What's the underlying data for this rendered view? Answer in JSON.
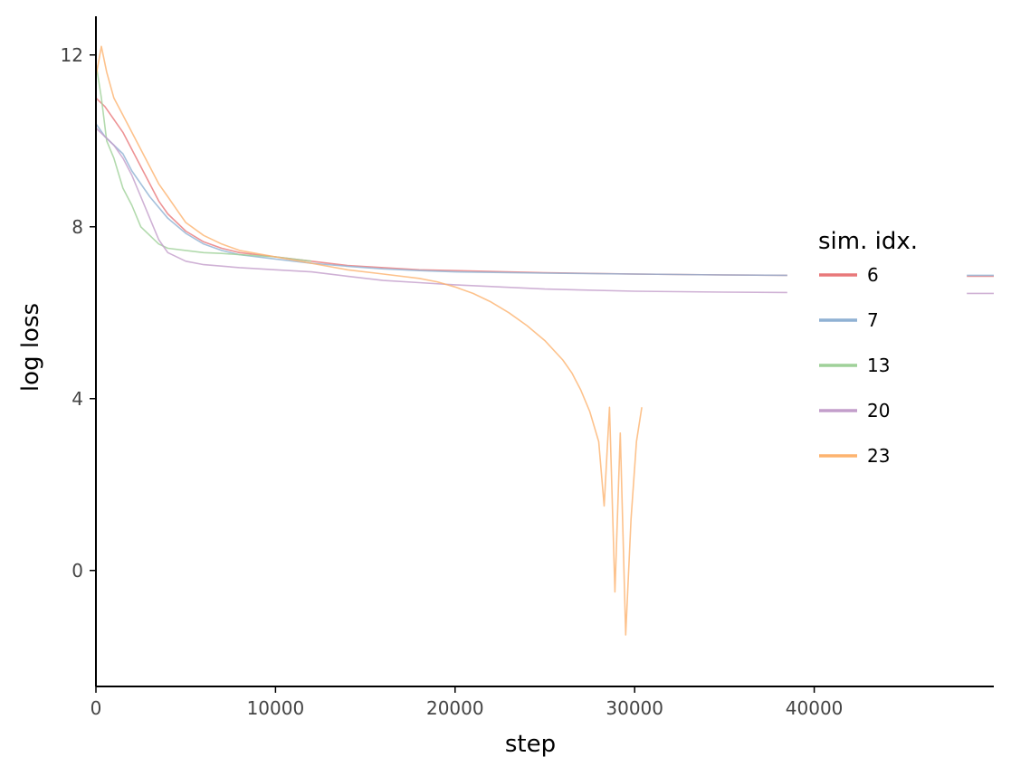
{
  "chart_data": {
    "type": "line",
    "title": "",
    "xlabel": "step",
    "ylabel": "log loss",
    "xlim": [
      0,
      50000
    ],
    "ylim": [
      -2.7,
      12.9
    ],
    "x_ticks": [
      0,
      10000,
      20000,
      30000,
      40000
    ],
    "x_tick_labels": [
      "0",
      "10000",
      "20000",
      "30000",
      "40000"
    ],
    "y_ticks": [
      0,
      4,
      8,
      12
    ],
    "y_tick_labels": [
      "0",
      "4",
      "8",
      "12"
    ],
    "grid": false,
    "legend": {
      "title": "sim. idx.",
      "placement": "right"
    },
    "series": [
      {
        "name": "6",
        "color": "#e8787a",
        "x": [
          0,
          500,
          1000,
          1500,
          2000,
          2500,
          3000,
          3500,
          4000,
          5000,
          6000,
          7000,
          8000,
          10000,
          12000,
          14000,
          16000,
          18000,
          20000,
          25000,
          30000,
          35000,
          38500,
          48500,
          50000
        ],
        "y": [
          11.0,
          10.8,
          10.5,
          10.2,
          9.8,
          9.4,
          9.0,
          8.6,
          8.3,
          7.9,
          7.65,
          7.5,
          7.4,
          7.3,
          7.2,
          7.1,
          7.05,
          7.0,
          6.98,
          6.93,
          6.9,
          6.88,
          6.87,
          6.85,
          6.85
        ],
        "gaps_after_x": [
          38500
        ]
      },
      {
        "name": "7",
        "color": "#8fb1d3",
        "x": [
          0,
          500,
          1000,
          1500,
          2000,
          3000,
          4000,
          5000,
          6000,
          7000,
          8000,
          10000,
          12000,
          14000,
          16000,
          18000,
          20000,
          25000,
          30000,
          35000,
          38500,
          48500,
          50000
        ],
        "y": [
          10.4,
          10.1,
          9.9,
          9.7,
          9.3,
          8.7,
          8.2,
          7.85,
          7.6,
          7.45,
          7.35,
          7.25,
          7.15,
          7.08,
          7.02,
          6.98,
          6.95,
          6.92,
          6.9,
          6.88,
          6.87,
          6.87,
          6.87
        ],
        "gaps_after_x": [
          38500
        ]
      },
      {
        "name": "13",
        "color": "#9fd199",
        "x": [
          0,
          300,
          600,
          1000,
          1500,
          2000,
          2500,
          3000,
          3500,
          4000,
          5000,
          6000,
          7000,
          8000,
          10000,
          12000
        ],
        "y": [
          11.8,
          11.0,
          10.0,
          9.6,
          8.9,
          8.5,
          8.0,
          7.8,
          7.6,
          7.5,
          7.45,
          7.4,
          7.38,
          7.35,
          7.3,
          7.2
        ]
      },
      {
        "name": "20",
        "color": "#c39ecb",
        "x": [
          0,
          500,
          1000,
          1500,
          2000,
          2500,
          3000,
          3500,
          4000,
          5000,
          6000,
          8000,
          10000,
          12000,
          14000,
          16000,
          18000,
          20000,
          25000,
          30000,
          35000,
          38500,
          48500,
          50000
        ],
        "y": [
          10.3,
          10.1,
          9.9,
          9.6,
          9.2,
          8.7,
          8.2,
          7.7,
          7.4,
          7.2,
          7.12,
          7.05,
          7.0,
          6.95,
          6.85,
          6.75,
          6.7,
          6.65,
          6.55,
          6.5,
          6.48,
          6.47,
          6.45,
          6.45
        ],
        "gaps_after_x": [
          38500
        ]
      },
      {
        "name": "23",
        "color": "#fdb36f",
        "x": [
          0,
          300,
          600,
          1000,
          1500,
          2000,
          2500,
          3000,
          3500,
          4000,
          4500,
          5000,
          6000,
          7000,
          8000,
          10000,
          12000,
          14000,
          16000,
          18000,
          19000,
          20000,
          21000,
          22000,
          23000,
          24000,
          25000,
          26000,
          26500,
          27000,
          27500,
          28000,
          28300,
          28600,
          28900,
          29200,
          29500,
          29800,
          30100,
          30400
        ],
        "y": [
          11.5,
          12.2,
          11.6,
          11.0,
          10.6,
          10.2,
          9.8,
          9.4,
          9.0,
          8.7,
          8.4,
          8.1,
          7.8,
          7.6,
          7.45,
          7.3,
          7.15,
          7.0,
          6.9,
          6.8,
          6.72,
          6.6,
          6.45,
          6.25,
          6.0,
          5.7,
          5.35,
          4.9,
          4.6,
          4.2,
          3.7,
          3.0,
          1.5,
          3.8,
          -0.5,
          3.2,
          -1.5,
          1.2,
          3.0,
          3.8
        ]
      }
    ]
  }
}
